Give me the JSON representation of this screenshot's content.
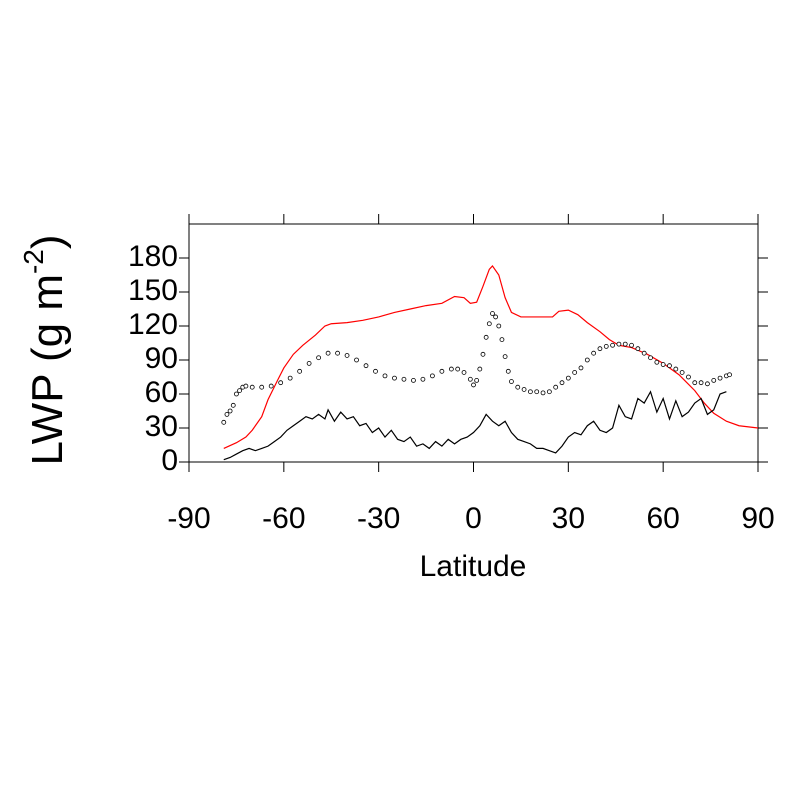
{
  "chart_data": {
    "type": "line",
    "xlabel": "Latitude",
    "ylabel": [
      "LWP (g m",
      "-2",
      ")"
    ],
    "xlim": [
      -90,
      90
    ],
    "xticks": [
      -90,
      -60,
      -30,
      0,
      30,
      60,
      90
    ],
    "ylim": [
      0,
      210
    ],
    "yticks": [
      0,
      30,
      60,
      90,
      120,
      150,
      180
    ],
    "series": [
      {
        "color": "#ff0000",
        "mode": "line",
        "x": [
          -79,
          -75,
          -72,
          -70,
          -67,
          -65,
          -62,
          -60,
          -57,
          -54,
          -50,
          -47,
          -45,
          -40,
          -35,
          -30,
          -25,
          -20,
          -15,
          -10,
          -6,
          -3,
          -1,
          1,
          3,
          5,
          6,
          8,
          10,
          12,
          15,
          20,
          25,
          27,
          30,
          33,
          36,
          40,
          43,
          46,
          50,
          55,
          60,
          65,
          70,
          73,
          76,
          80,
          84,
          87,
          90
        ],
        "values": [
          12,
          17,
          22,
          28,
          40,
          55,
          72,
          83,
          95,
          103,
          112,
          120,
          122,
          123,
          125,
          128,
          132,
          135,
          138,
          140,
          146,
          145,
          140,
          141,
          155,
          170,
          173,
          165,
          145,
          132,
          128,
          128,
          128,
          133,
          134,
          130,
          123,
          115,
          108,
          103,
          101,
          95,
          87,
          77,
          63,
          52,
          43,
          36,
          32,
          31,
          30
        ]
      },
      {
        "color": "#000000",
        "mode": "line",
        "x": [
          -79,
          -77,
          -75,
          -73,
          -71,
          -69,
          -67,
          -65,
          -63,
          -61,
          -59,
          -57,
          -55,
          -53,
          -51,
          -49,
          -47,
          -46,
          -44,
          -42,
          -40,
          -38,
          -36,
          -34,
          -32,
          -30,
          -28,
          -26,
          -24,
          -22,
          -20,
          -18,
          -16,
          -14,
          -12,
          -10,
          -8,
          -6,
          -4,
          -2,
          0,
          2,
          4,
          6,
          8,
          10,
          12,
          14,
          16,
          18,
          20,
          22,
          24,
          26,
          28,
          30,
          32,
          34,
          36,
          38,
          40,
          42,
          44,
          46,
          48,
          50,
          52,
          54,
          56,
          58,
          60,
          62,
          64,
          66,
          68,
          70,
          72,
          74,
          76,
          78,
          80
        ],
        "values": [
          2,
          4,
          7,
          10,
          12,
          10,
          12,
          14,
          18,
          22,
          28,
          32,
          36,
          40,
          38,
          42,
          38,
          46,
          36,
          44,
          38,
          40,
          32,
          34,
          26,
          30,
          22,
          28,
          20,
          18,
          22,
          14,
          16,
          12,
          18,
          14,
          20,
          16,
          20,
          22,
          26,
          32,
          42,
          36,
          32,
          36,
          26,
          20,
          18,
          16,
          12,
          12,
          10,
          8,
          14,
          22,
          26,
          24,
          32,
          36,
          28,
          26,
          30,
          50,
          40,
          38,
          56,
          52,
          62,
          44,
          56,
          38,
          54,
          40,
          44,
          52,
          56,
          42,
          46,
          60,
          62
        ]
      },
      {
        "color": "#000000",
        "mode": "markers",
        "x": [
          -79,
          -78,
          -77,
          -76,
          -75,
          -74,
          -73,
          -72,
          -70,
          -67,
          -64,
          -61,
          -58,
          -55,
          -52,
          -49,
          -46,
          -43,
          -40,
          -37,
          -34,
          -31,
          -28,
          -25,
          -22,
          -19,
          -16,
          -13,
          -10,
          -7,
          -5,
          -3,
          -1,
          0,
          1,
          2,
          3,
          4,
          5,
          6,
          7,
          8,
          9,
          10,
          11,
          12,
          14,
          16,
          18,
          20,
          22,
          24,
          26,
          28,
          30,
          32,
          34,
          36,
          38,
          40,
          42,
          44,
          46,
          48,
          50,
          52,
          54,
          56,
          58,
          60,
          62,
          64,
          66,
          68,
          70,
          72,
          74,
          76,
          78,
          80,
          81
        ],
        "values": [
          35,
          42,
          45,
          50,
          60,
          63,
          66,
          67,
          66,
          66,
          67,
          70,
          74,
          80,
          87,
          92,
          96,
          96,
          94,
          90,
          85,
          80,
          76,
          74,
          73,
          72,
          73,
          76,
          80,
          82,
          82,
          79,
          73,
          68,
          72,
          82,
          95,
          110,
          122,
          131,
          128,
          120,
          108,
          93,
          80,
          71,
          66,
          64,
          62,
          62,
          61,
          62,
          66,
          70,
          74,
          79,
          83,
          90,
          96,
          100,
          102,
          103,
          104,
          104,
          103,
          100,
          96,
          92,
          88,
          86,
          85,
          82,
          79,
          75,
          70,
          70,
          69,
          72,
          74,
          76,
          77
        ]
      }
    ]
  }
}
